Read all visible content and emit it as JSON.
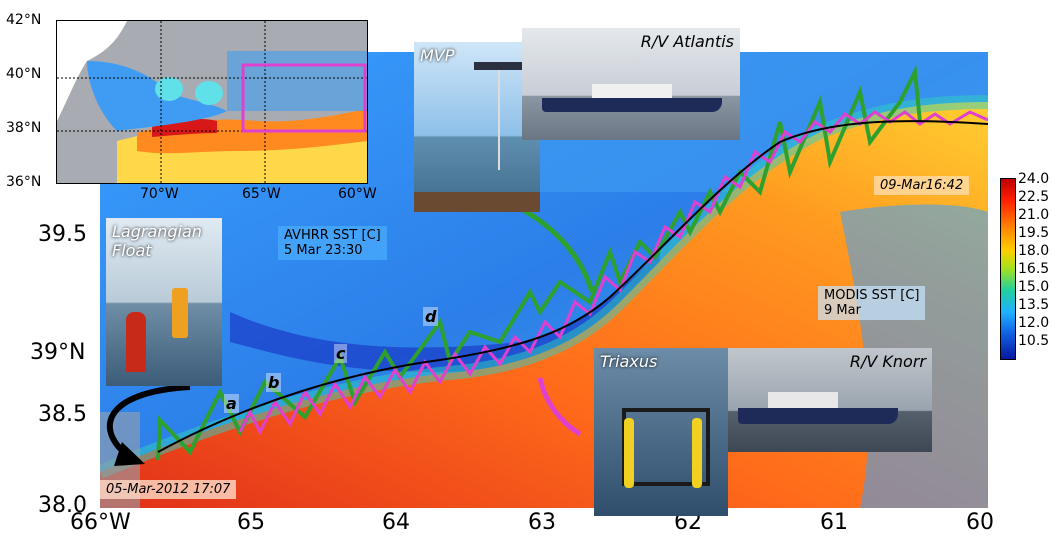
{
  "main_map": {
    "y_ticks": [
      "38.0",
      "38.5",
      "39°N",
      "39.5"
    ],
    "x_ticks": [
      "66°W",
      "65",
      "64",
      "63",
      "62",
      "61",
      "60"
    ],
    "labels": {
      "avhrr_title": "AVHRR SST [C]",
      "avhrr_time": "5 Mar 23:30",
      "modis_title": "MODIS SST [C]",
      "modis_time": "9 Mar",
      "start_time": "05-Mar-2012 17:07",
      "end_time": "09-Mar16:42"
    },
    "segments": [
      "a",
      "b",
      "c",
      "d"
    ]
  },
  "photos": {
    "mvp": "MVP",
    "atlantis": "R/V Atlantis",
    "float_line1": "Lagrangian",
    "float_line2": "Float",
    "triaxus": "Triaxus",
    "knorr": "R/V Knorr"
  },
  "inset": {
    "y_ticks": [
      "42°N",
      "40°N",
      "38°N",
      "36°N"
    ],
    "x_ticks": [
      "70°W",
      "65°W",
      "60°W"
    ]
  },
  "colorbar": {
    "values": [
      "24.0",
      "22.5",
      "21.0",
      "19.5",
      "18.0",
      "16.5",
      "15.0",
      "13.5",
      "12.0",
      "10.5"
    ]
  },
  "colors": {
    "mvp_track": "#2ea02e",
    "triaxus_track": "#e040d0",
    "float_track": "#000000",
    "inset_box": "#e040d0"
  }
}
